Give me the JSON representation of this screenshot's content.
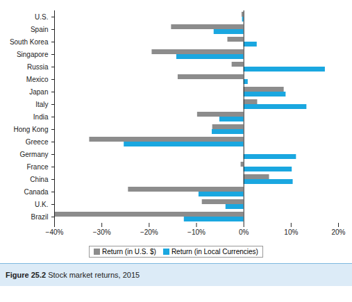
{
  "chart_data": {
    "type": "bar",
    "orientation": "horizontal",
    "title": "Figure 25.2 Stock market returns, 2015",
    "categories": [
      "U.S.",
      "Spain",
      "South Korea",
      "Singapore",
      "Russia",
      "Mexico",
      "Japan",
      "Italy",
      "India",
      "Hong Kong",
      "Greece",
      "Germany",
      "France",
      "China",
      "Canada",
      "U.K.",
      "Brazil"
    ],
    "series": [
      {
        "name": "Return (in U.S. $)",
        "color": "#8c8c8c",
        "values": [
          -0.4,
          -15.3,
          -3.4,
          -19.4,
          -2.5,
          -13.9,
          8.5,
          2.9,
          -9.8,
          -6.6,
          -32.6,
          0,
          -0.6,
          5.4,
          -24.4,
          -8.8,
          -40
        ]
      },
      {
        "name": "Return (in Local Currencies)",
        "color": "#1aa7e0",
        "values": [
          -0.3,
          -6.3,
          2.8,
          -14.2,
          17.2,
          0.9,
          8.9,
          13.3,
          -5.1,
          -6.7,
          -25.3,
          11.1,
          10.2,
          10.4,
          -9.5,
          -3.8,
          -12.6
        ]
      }
    ],
    "xlim": [
      -40,
      20
    ],
    "xticks": [
      {
        "value": -40,
        "label": "−40%"
      },
      {
        "value": -30,
        "label": "−30%"
      },
      {
        "value": -20,
        "label": "−20%"
      },
      {
        "value": -10,
        "label": "−10%"
      },
      {
        "value": 0,
        "label": "0%"
      },
      {
        "value": 10,
        "label": "10%"
      },
      {
        "value": 20,
        "label": "20%"
      }
    ],
    "grid": false,
    "legend": "bottom"
  }
}
